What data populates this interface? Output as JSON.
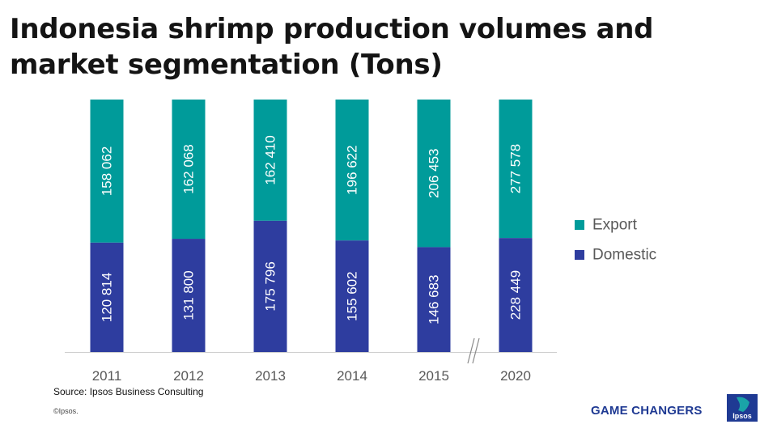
{
  "chart_data": {
    "type": "bar",
    "stacked": true,
    "title": "Indonesia shrimp production volumes and market segmentation (Tons)",
    "categories": [
      "2011",
      "2012",
      "2013",
      "2014",
      "2015",
      "2020"
    ],
    "series": [
      {
        "name": "Domestic",
        "color": "#2e3d9f",
        "values": [
          120814,
          131800,
          175796,
          155602,
          146683,
          228449
        ]
      },
      {
        "name": "Export",
        "color": "#009b9a",
        "values": [
          158062,
          162068,
          162410,
          196622,
          206453,
          277578
        ]
      }
    ],
    "data_labels": {
      "Domestic": [
        "120 814",
        "131 800",
        "175 796",
        "155 602",
        "146 683",
        "228 449"
      ],
      "Export": [
        "158 062",
        "162 068",
        "162 410",
        "196 622",
        "206 453",
        "277 578"
      ]
    },
    "axis_break_between": [
      "2015",
      "2020"
    ],
    "legend_order": [
      "Export",
      "Domestic"
    ],
    "legend_position": "right",
    "xlabel": "",
    "ylabel": ""
  },
  "footer": {
    "source": "Source: Ipsos Business Consulting",
    "copyright": "©Ipsos.",
    "brand": "GAME CHANGERS",
    "logo_text": "Ipsos"
  },
  "colors": {
    "title": "#141414",
    "axis": "#cfcfcf",
    "tick": "#595959",
    "label": "#ffffff"
  }
}
